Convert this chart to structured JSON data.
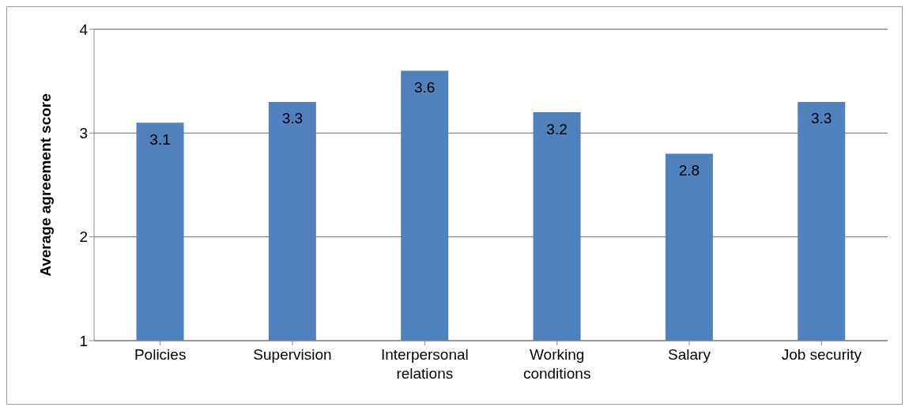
{
  "chart_data": {
    "type": "bar",
    "ylabel": "Average agreement score",
    "categories": [
      "Policies",
      "Supervision",
      "Interpersonal relations",
      "Working conditions",
      "Salary",
      "Job security"
    ],
    "values": [
      3.1,
      3.3,
      3.6,
      3.2,
      2.8,
      3.3
    ],
    "color": "#4f81bd",
    "ylim": [
      1,
      4
    ],
    "yticks": [
      1,
      2,
      3,
      4
    ],
    "grid": "y",
    "data_labels": true
  }
}
